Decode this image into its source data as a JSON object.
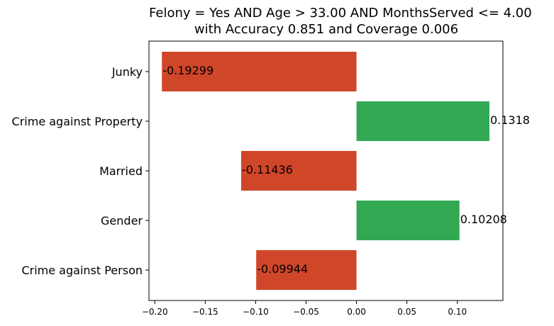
{
  "chart_data": {
    "type": "bar",
    "orientation": "horizontal",
    "title_line1": "Felony = Yes AND Age > 33.00 AND MonthsServed <= 4.00",
    "title_line2": "with Accuracy 0.851 and Coverage 0.006",
    "categories": [
      "Junky",
      "Crime against Property",
      "Married",
      "Gender",
      "Crime against Person"
    ],
    "values": [
      -0.19299,
      0.1318,
      -0.11436,
      0.10208,
      -0.09944
    ],
    "value_labels": [
      "-0.19299",
      "0.1318",
      "-0.11436",
      "0.10208",
      "-0.09944"
    ],
    "xlim": [
      -0.2058,
      0.1452
    ],
    "xticks": [
      -0.2,
      -0.15,
      -0.1,
      -0.05,
      0.0,
      0.05,
      0.1
    ],
    "xtick_labels": [
      "−0.20",
      "−0.15",
      "−0.10",
      "−0.05",
      "0.00",
      "0.05",
      "0.10"
    ],
    "xlabel": "",
    "ylabel": "",
    "grid": false,
    "colors": {
      "negative": "#d04629",
      "positive": "#32a852"
    }
  }
}
